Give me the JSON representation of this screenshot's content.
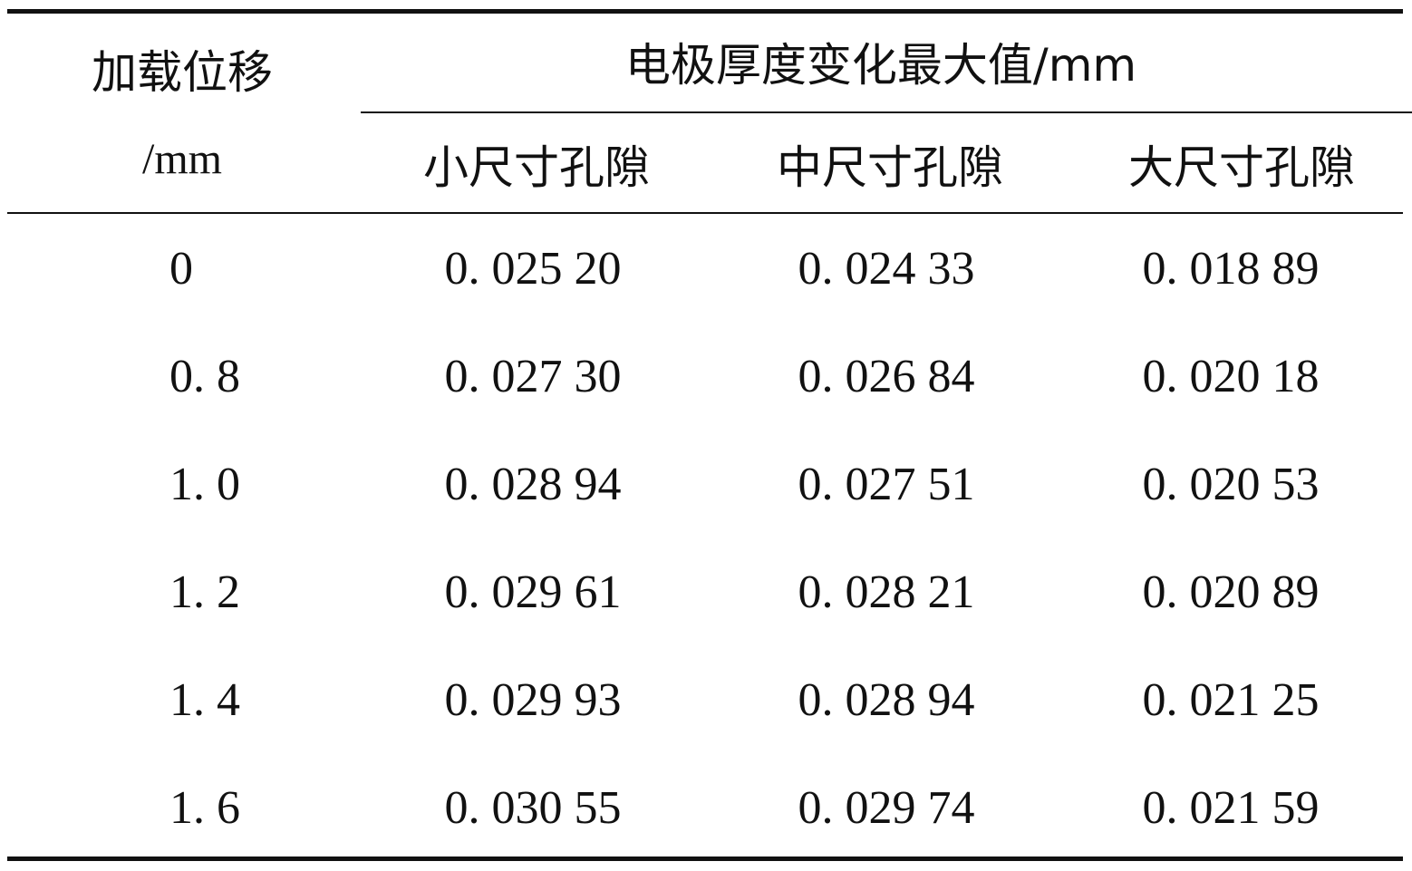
{
  "table": {
    "header": {
      "col0_line1": "加载位移",
      "col0_line2": "/mm",
      "group_title": "电极厚度变化最大值/mm",
      "subcols": [
        "小尺寸孔隙",
        "中尺寸孔隙",
        "大尺寸孔隙"
      ]
    },
    "rows": [
      {
        "disp": "0",
        "small": "0. 025 20",
        "medium": "0. 024 33",
        "large": "0. 018 89"
      },
      {
        "disp": "0. 8",
        "small": "0. 027 30",
        "medium": "0. 026 84",
        "large": "0. 020 18"
      },
      {
        "disp": "1. 0",
        "small": "0. 028 94",
        "medium": "0. 027 51",
        "large": "0. 020 53"
      },
      {
        "disp": "1. 2",
        "small": "0. 029 61",
        "medium": "0. 028 21",
        "large": "0. 020 89"
      },
      {
        "disp": "1. 4",
        "small": "0. 029 93",
        "medium": "0. 028 94",
        "large": "0. 021 25"
      },
      {
        "disp": "1. 6",
        "small": "0. 030 55",
        "medium": "0. 029 74",
        "large": "0. 021 59"
      }
    ]
  }
}
